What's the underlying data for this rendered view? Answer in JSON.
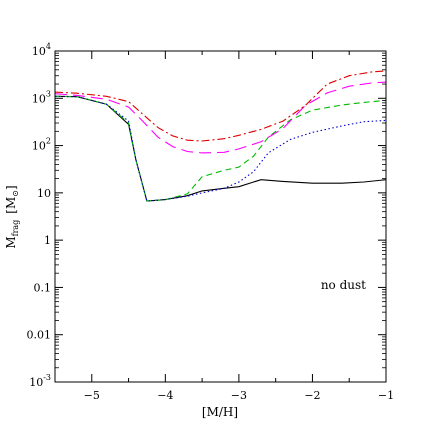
{
  "chart_data": {
    "type": "line",
    "title": "",
    "xlabel": "[M/H]",
    "ylabel_main": "M",
    "ylabel_sub": "frag",
    "ylabel_unit_open": "[M",
    "ylabel_unit_sub": "⊙",
    "ylabel_unit_close": "]",
    "xlim": [
      -5.5,
      -1
    ],
    "ylim": [
      0.001,
      10000
    ],
    "yscale": "log",
    "grid": false,
    "legend": "none",
    "annotation": "no dust",
    "x_ticks": [
      {
        "value": -5,
        "label": "−5"
      },
      {
        "value": -4,
        "label": "−4"
      },
      {
        "value": -3,
        "label": "−3"
      },
      {
        "value": -2,
        "label": "−2"
      },
      {
        "value": -1,
        "label": "−1"
      }
    ],
    "y_ticks": [
      {
        "value": 10000,
        "base": "10",
        "exp": "4"
      },
      {
        "value": 1000,
        "base": "10",
        "exp": "3"
      },
      {
        "value": 100,
        "base": "10",
        "exp": "2"
      },
      {
        "value": 10,
        "base": "10",
        "exp": ""
      },
      {
        "value": 1,
        "base": "1",
        "exp": ""
      },
      {
        "value": 0.1,
        "base": "0.1",
        "exp": ""
      },
      {
        "value": 0.01,
        "base": "0.01",
        "exp": ""
      },
      {
        "value": 0.001,
        "base": "10",
        "exp": "-3"
      }
    ],
    "series": [
      {
        "color": "#000000",
        "dash": "",
        "x": [
          -5.5,
          -5.2,
          -4.8,
          -4.5,
          -4.4,
          -4.25,
          -4.0,
          -3.7,
          -3.5,
          -3.2,
          -3.0,
          -2.8,
          -2.7,
          -2.4,
          -2.0,
          -1.6,
          -1.3,
          -1.0
        ],
        "y": [
          1100,
          1080,
          750,
          280,
          50,
          6.7,
          7.2,
          8.7,
          11,
          12.5,
          13.5,
          17,
          19,
          17.5,
          16,
          16,
          17,
          19
        ]
      },
      {
        "color": "#00bb00",
        "dash": "6 4",
        "x": [
          -5.5,
          -5.2,
          -4.8,
          -4.5,
          -4.4,
          -4.25,
          -4.0,
          -3.7,
          -3.5,
          -3.2,
          -3.0,
          -2.8,
          -2.6,
          -2.3,
          -2.0,
          -1.6,
          -1.3,
          -1.0
        ],
        "y": [
          1100,
          1080,
          750,
          300,
          50,
          6.7,
          7.2,
          9.5,
          22,
          30,
          35,
          60,
          150,
          350,
          560,
          720,
          820,
          900
        ]
      },
      {
        "color": "#0000cc",
        "dash": "1.5 2.5",
        "x": [
          -5.5,
          -5.2,
          -4.8,
          -4.5,
          -4.4,
          -4.25,
          -4.0,
          -3.7,
          -3.5,
          -3.2,
          -3.0,
          -2.8,
          -2.6,
          -2.3,
          -2.0,
          -1.6,
          -1.3,
          -1.0
        ],
        "y": [
          1100,
          1080,
          750,
          330,
          50,
          6.7,
          7.2,
          8.5,
          10,
          12.5,
          17,
          28,
          70,
          135,
          190,
          260,
          320,
          340
        ]
      },
      {
        "color": "#ff00ff",
        "dash": "12 6",
        "x": [
          -5.5,
          -5.2,
          -4.8,
          -4.5,
          -4.3,
          -4.1,
          -3.9,
          -3.7,
          -3.5,
          -3.2,
          -3.0,
          -2.7,
          -2.4,
          -2.1,
          -1.8,
          -1.5,
          -1.2,
          -1.0
        ],
        "y": [
          1250,
          1150,
          950,
          650,
          320,
          150,
          95,
          75,
          70,
          72,
          85,
          120,
          230,
          700,
          1300,
          1800,
          2100,
          2200
        ]
      },
      {
        "color": "#dd0000",
        "dash": "8 3 2 3",
        "x": [
          -5.5,
          -5.2,
          -4.8,
          -4.5,
          -4.3,
          -4.1,
          -3.9,
          -3.7,
          -3.5,
          -3.2,
          -3.0,
          -2.7,
          -2.4,
          -2.1,
          -1.8,
          -1.5,
          -1.2,
          -1.0
        ],
        "y": [
          1350,
          1280,
          1100,
          850,
          450,
          240,
          160,
          130,
          125,
          140,
          165,
          220,
          330,
          700,
          2000,
          3000,
          3600,
          3800
        ]
      }
    ]
  }
}
